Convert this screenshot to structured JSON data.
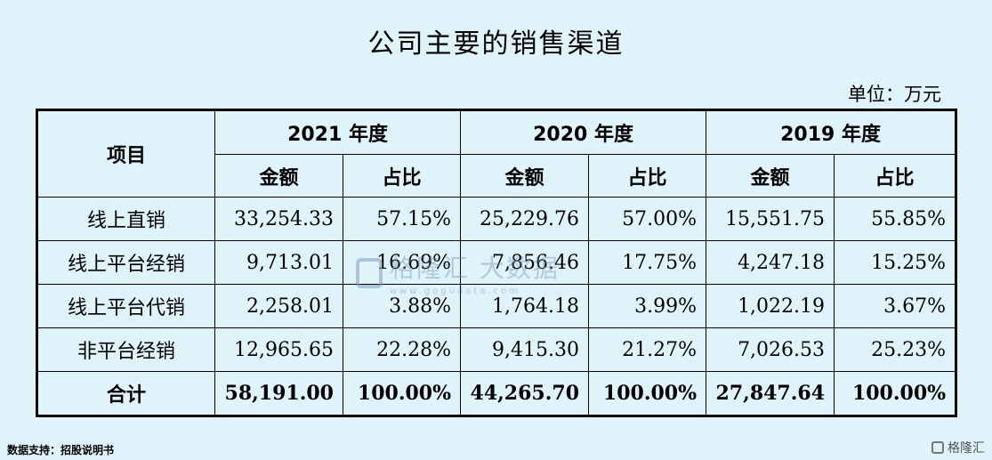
{
  "title": "公司主要的销售渠道",
  "unit": "单位：万元",
  "table": {
    "corner_header": "项目",
    "years": [
      "2021 年度",
      "2020 年度",
      "2019 年度"
    ],
    "sub_headers": [
      "金额",
      "占比"
    ],
    "rows": [
      {
        "label": "线上直销",
        "cells": [
          "33,254.33",
          "57.15%",
          "25,229.76",
          "57.00%",
          "15,551.75",
          "55.85%"
        ]
      },
      {
        "label": "线上平台经销",
        "cells": [
          "9,713.01",
          "16.69%",
          "7,856.46",
          "17.75%",
          "4,247.18",
          "15.25%"
        ]
      },
      {
        "label": "线上平台代销",
        "cells": [
          "2,258.01",
          "3.88%",
          "1,764.18",
          "3.99%",
          "1,022.19",
          "3.67%"
        ]
      },
      {
        "label": "非平台经销",
        "cells": [
          "12,965.65",
          "22.28%",
          "9,415.30",
          "21.27%",
          "7,026.53",
          "25.23%"
        ]
      }
    ],
    "total": {
      "label": "合计",
      "cells": [
        "58,191.00",
        "100.00%",
        "44,265.70",
        "100.00%",
        "27,847.64",
        "100.00%"
      ]
    }
  },
  "watermark": {
    "text": "格隆汇 大数据",
    "url": "www.gogudata.com"
  },
  "source": "数据支持：招股说明书",
  "corner_brand": "格隆汇"
}
